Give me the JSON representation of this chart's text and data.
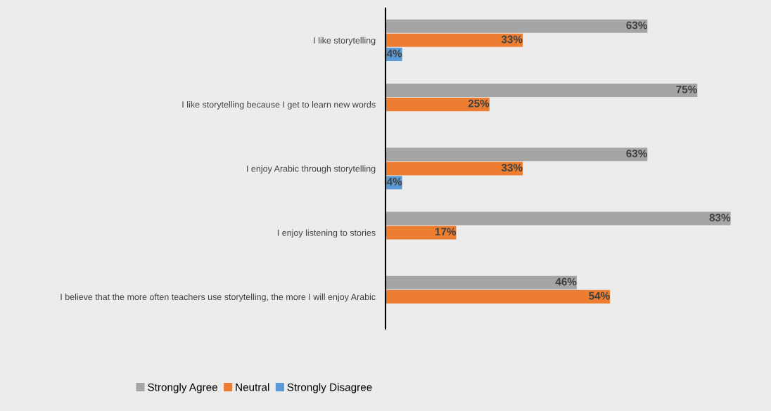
{
  "chart_data": {
    "type": "bar",
    "orientation": "horizontal",
    "legend": "bottom",
    "grid": false,
    "categories": [
      "I like storytelling",
      "I like storytelling because I get to learn new words",
      "I enjoy Arabic through storytelling",
      "I enjoy listening to stories",
      "I believe that the more often teachers use storytelling, the more I will enjoy Arabic"
    ],
    "series": [
      {
        "name": "Strongly Agree",
        "color": "#a5a5a5",
        "values": [
          63,
          75,
          63,
          83,
          46
        ],
        "value_labels": [
          "63%",
          "75%",
          "63%",
          "83%",
          "46%"
        ]
      },
      {
        "name": "Neutral",
        "color": "#ed7d31",
        "values": [
          33,
          25,
          33,
          17,
          54
        ],
        "value_labels": [
          "33%",
          "25%",
          "33%",
          "17%",
          "54%"
        ]
      },
      {
        "name": "Strongly Disagree",
        "color": "#5b9bd5",
        "values": [
          4,
          null,
          4,
          null,
          null
        ],
        "value_labels": [
          "4%",
          null,
          "4%",
          null,
          null
        ]
      }
    ]
  }
}
